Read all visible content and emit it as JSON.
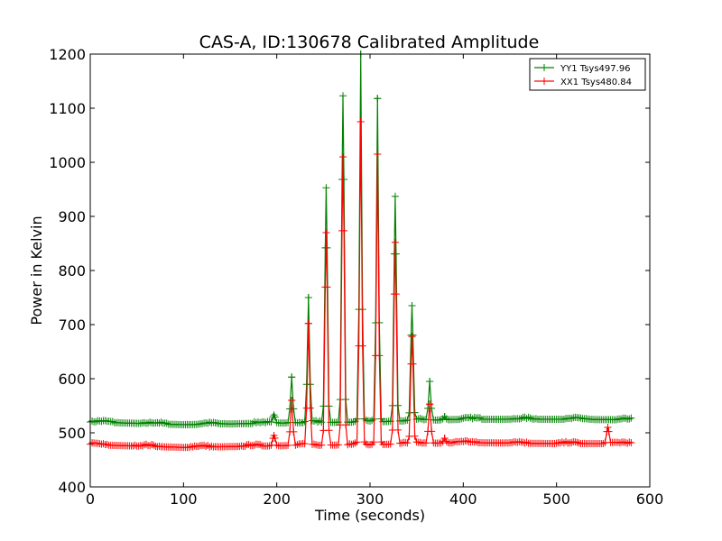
{
  "chart_data": {
    "type": "line",
    "title": "CAS-A, ID:130678 Calibrated Amplitude",
    "xlabel": "Time (seconds)",
    "ylabel": "Power in Kelvin",
    "xlim": [
      0,
      600
    ],
    "ylim": [
      400,
      1200
    ],
    "xticks": [
      0,
      100,
      200,
      300,
      400,
      500,
      600
    ],
    "yticks": [
      400,
      500,
      600,
      700,
      800,
      900,
      1000,
      1100,
      1200
    ],
    "grid": false,
    "legend_position": "top-right",
    "marker": "+",
    "sample_interval_seconds": 2,
    "series": [
      {
        "name": "YY1 Tsys497.96",
        "color": "#008000",
        "baseline": [
          [
            0,
            520
          ],
          [
            100,
            515
          ],
          [
            200,
            518
          ],
          [
            300,
            520
          ],
          [
            400,
            525
          ],
          [
            500,
            525
          ],
          [
            580,
            524
          ]
        ],
        "peaks": [
          [
            197,
            533
          ],
          [
            216,
            603
          ],
          [
            234,
            750
          ],
          [
            253,
            953
          ],
          [
            271,
            1123
          ],
          [
            290,
            1200
          ],
          [
            308,
            1118
          ],
          [
            327,
            937
          ],
          [
            345,
            735
          ],
          [
            364,
            595
          ],
          [
            380,
            530
          ]
        ]
      },
      {
        "name": "XX1 Tsys480.84",
        "color": "#ff0000",
        "baseline": [
          [
            0,
            478
          ],
          [
            100,
            473
          ],
          [
            200,
            476
          ],
          [
            300,
            478
          ],
          [
            400,
            482
          ],
          [
            500,
            480
          ],
          [
            580,
            480
          ]
        ],
        "peaks": [
          [
            197,
            495
          ],
          [
            216,
            560
          ],
          [
            234,
            702
          ],
          [
            253,
            870
          ],
          [
            271,
            1010
          ],
          [
            290,
            1075
          ],
          [
            308,
            1015
          ],
          [
            327,
            852
          ],
          [
            345,
            678
          ],
          [
            364,
            553
          ],
          [
            380,
            490
          ],
          [
            555,
            510
          ]
        ]
      }
    ]
  }
}
